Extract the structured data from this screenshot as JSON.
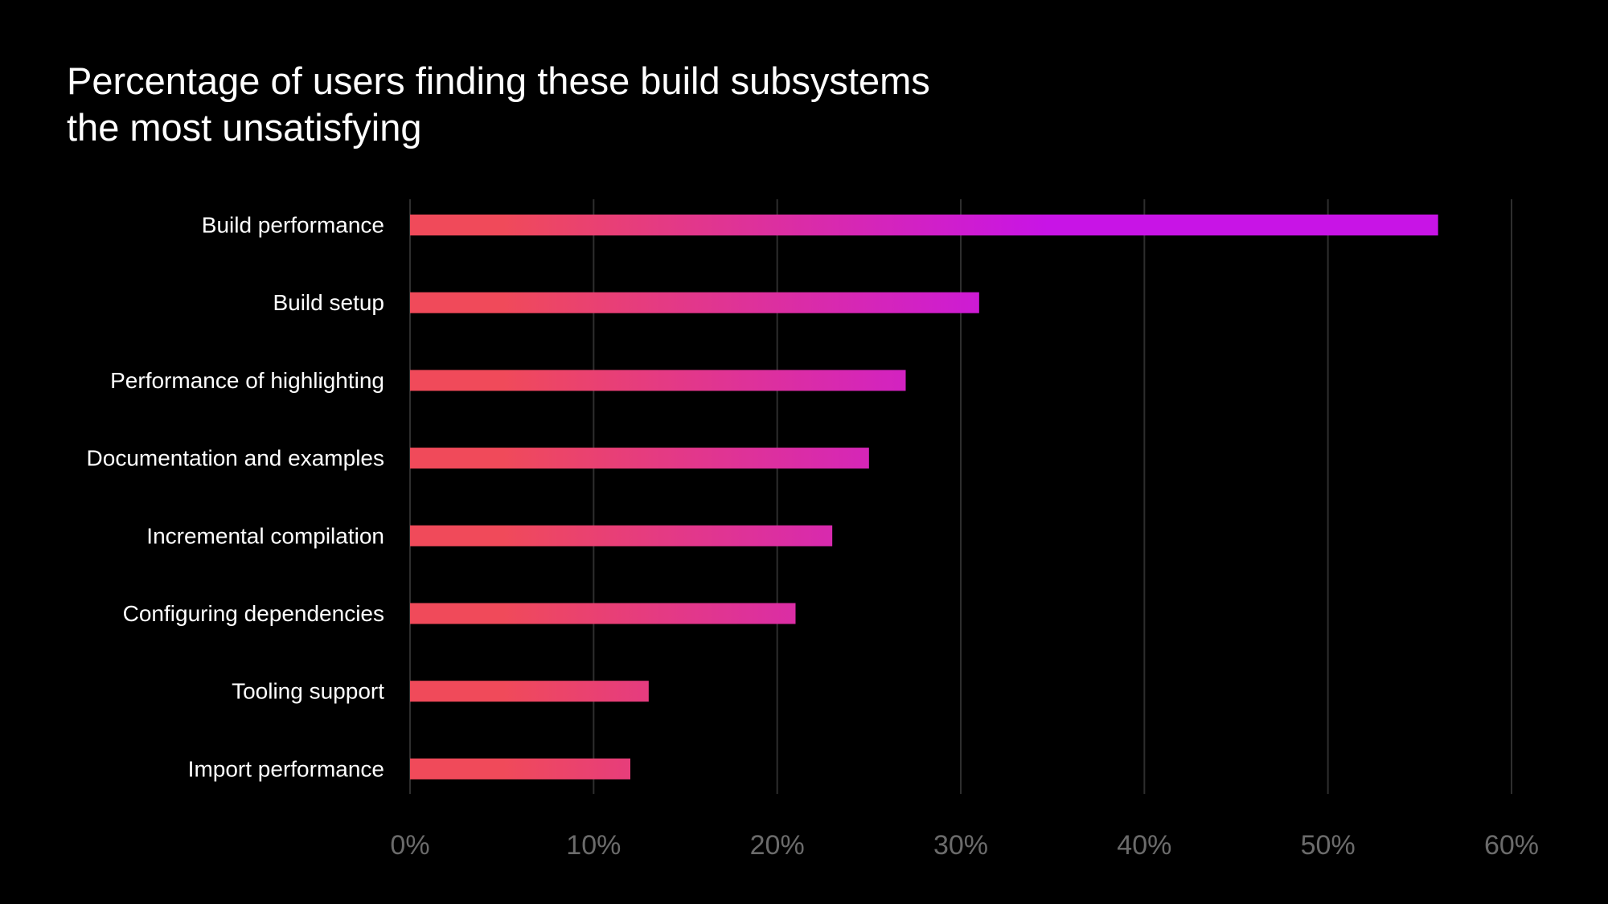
{
  "chart_data": {
    "type": "bar",
    "orientation": "horizontal",
    "title": "Percentage of users finding these build subsystems the most unsatisfying",
    "categories": [
      "Build performance",
      "Build setup",
      "Performance of highlighting",
      "Documentation and examples",
      "Incremental compilation",
      "Configuring dependencies",
      "Tooling support",
      "Import performance"
    ],
    "values": [
      56,
      31,
      27,
      25,
      23,
      21,
      13,
      12
    ],
    "unit": "%",
    "xlim": [
      0,
      60
    ],
    "xticks": [
      0,
      10,
      20,
      30,
      40,
      50,
      60
    ],
    "xtick_labels": [
      "0%",
      "10%",
      "20%",
      "30%",
      "40%",
      "50%",
      "60%"
    ],
    "xlabel": "",
    "ylabel": "",
    "grid": "vertical",
    "legend": "none"
  },
  "colors": {
    "background": "#000000",
    "bar_start": "#f04a5a",
    "bar_end": "#c814e6",
    "gridline": "#2e2e2e",
    "tick_text": "#6b6b6b",
    "label_text": "#ffffff"
  }
}
